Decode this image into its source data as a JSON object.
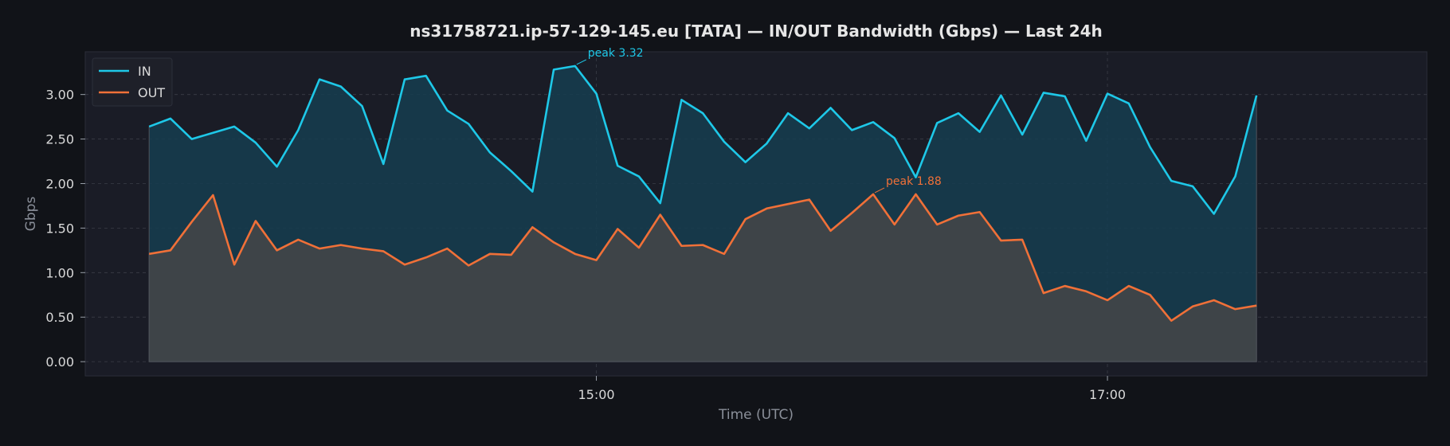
{
  "chart_data": {
    "type": "area",
    "title": "ns31758721.ip-57-129-145.eu [TATA] — IN/OUT Bandwidth (Gbps) — Last 24h",
    "xlabel": "Time (UTC)",
    "ylabel": "Gbps",
    "x_ticks": [
      {
        "label": "15:00",
        "minutes": 900
      },
      {
        "label": "17:00",
        "minutes": 1020
      }
    ],
    "x_range_minutes": [
      780,
      1095
    ],
    "x_start_minutes": 795,
    "x_step_minutes": 5,
    "ylim": [
      -0.16,
      3.48
    ],
    "y_ticks": [
      "0.00",
      "0.50",
      "1.00",
      "1.50",
      "2.00",
      "2.50",
      "3.00"
    ],
    "grid": true,
    "legend_position": "top-left",
    "series": [
      {
        "name": "IN",
        "color": "#1ec8e8",
        "fill": "#163d50",
        "values": [
          2.64,
          2.73,
          2.5,
          2.57,
          2.64,
          2.46,
          2.19,
          2.6,
          3.17,
          3.09,
          2.87,
          2.22,
          3.17,
          3.21,
          2.82,
          2.67,
          2.35,
          2.14,
          1.91,
          3.28,
          3.32,
          3.01,
          2.2,
          2.08,
          1.78,
          2.94,
          2.79,
          2.47,
          2.24,
          2.45,
          2.79,
          2.62,
          2.85,
          2.6,
          2.69,
          2.51,
          2.07,
          2.68,
          2.79,
          2.58,
          2.99,
          2.55,
          3.02,
          2.98,
          2.48,
          3.01,
          2.9,
          2.41,
          2.03,
          1.97,
          1.66,
          2.08,
          2.99
        ]
      },
      {
        "name": "OUT",
        "color": "#f07038",
        "fill": "#404449",
        "values": [
          1.21,
          1.25,
          1.57,
          1.87,
          1.09,
          1.58,
          1.25,
          1.37,
          1.27,
          1.31,
          1.27,
          1.24,
          1.09,
          1.17,
          1.27,
          1.08,
          1.21,
          1.2,
          1.51,
          1.34,
          1.21,
          1.14,
          1.49,
          1.28,
          1.65,
          1.3,
          1.31,
          1.21,
          1.6,
          1.72,
          1.77,
          1.82,
          1.47,
          1.67,
          1.88,
          1.54,
          1.88,
          1.54,
          1.64,
          1.68,
          1.36,
          1.37,
          0.77,
          0.85,
          0.79,
          0.69,
          0.85,
          0.75,
          0.46,
          0.62,
          0.69,
          0.59,
          0.63
        ]
      }
    ],
    "annotations": [
      {
        "series": 0,
        "index": 20,
        "text": "peak 3.32"
      },
      {
        "series": 1,
        "index": 34,
        "text": "peak 1.88"
      }
    ]
  },
  "colors": {
    "page_background": "#111318",
    "plot_background": "#1a1c26",
    "grid": "#3a3d47",
    "text": "#d9d9d9",
    "muted_text": "#8a8f99"
  }
}
